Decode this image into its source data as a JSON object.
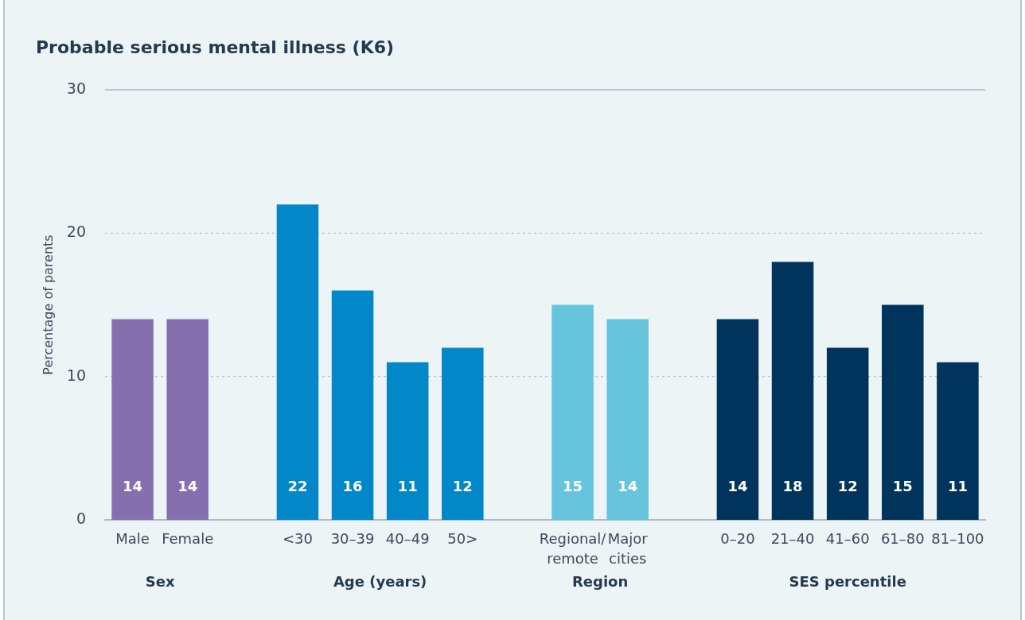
{
  "chart_data": {
    "type": "bar",
    "title": "Probable serious mental illness (K6)",
    "ylabel": "Percentage of parents",
    "categories": [
      "Male",
      "Female",
      null,
      "<30",
      "30–39",
      "40–49",
      "50>",
      null,
      "Regional/ remote",
      "Major cities",
      null,
      "0–20",
      "21–40",
      "41–60",
      "61–80",
      "81–100"
    ],
    "values": [
      14,
      14,
      null,
      22,
      16,
      11,
      12,
      null,
      15,
      14,
      null,
      14,
      18,
      12,
      15,
      11
    ],
    "colors": [
      "#866fae",
      "#866fae",
      null,
      "#0287c9",
      "#0287c9",
      "#0287c9",
      "#0287c9",
      null,
      "#66c4dd",
      "#66c4dd",
      null,
      "#01345d",
      "#01345d",
      "#01345d",
      "#01345d",
      "#01345d"
    ],
    "annotations": [
      "Sex",
      "Age (years)",
      "Region",
      "SES percentile"
    ],
    "ylim": [
      0,
      30
    ],
    "yticks": [
      0,
      10,
      20,
      30
    ],
    "grid": "y",
    "data_labels": true
  }
}
